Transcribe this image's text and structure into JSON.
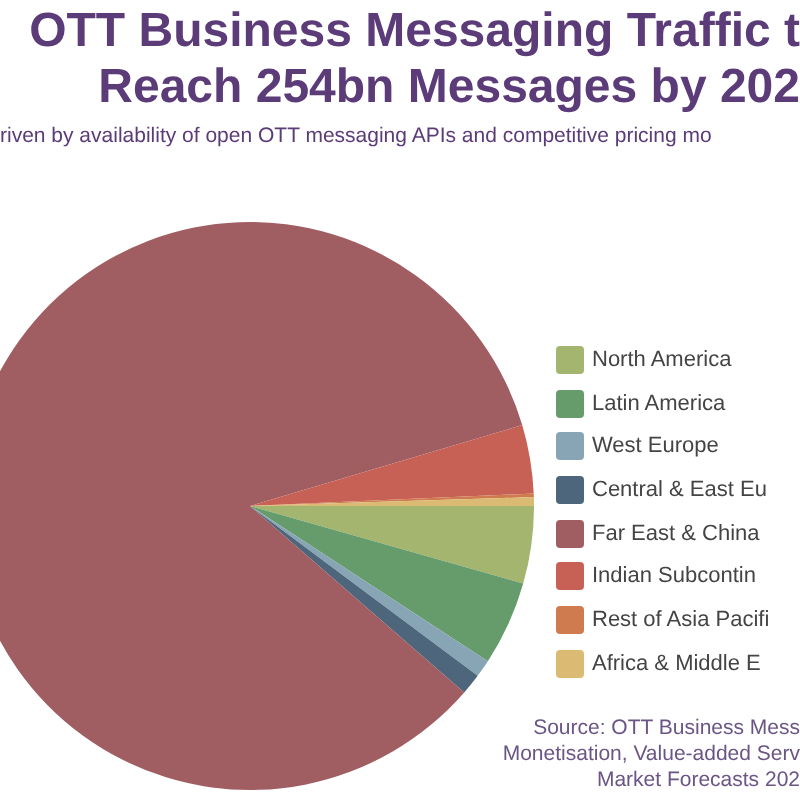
{
  "chart_data": {
    "type": "pie",
    "title": "OTT Business Messaging Traffic t\nReach 254bn Messages by 202",
    "subtitle": "riven by availability of open OTT messaging APIs and competitive pricing mo",
    "categories": [
      "North America",
      "Latin America",
      "West Europe",
      "Central & East Eu",
      "Far East & China",
      "Indian Subcontin",
      "Rest of Asia Pacifi",
      "Africa & Middle E"
    ],
    "values": [
      4.4,
      4.8,
      1.0,
      1.2,
      84.0,
      3.9,
      0.2,
      0.5
    ],
    "colors": [
      "#a3b56e",
      "#669c6c",
      "#87a5b5",
      "#4e667b",
      "#a05d62",
      "#c86155",
      "#d07a50",
      "#dbbb73"
    ],
    "legend": "right",
    "annotations": [
      "Source: OTT Business Mess\nMonetisation, Value-added Serv\nMarket Forecasts 202"
    ]
  }
}
